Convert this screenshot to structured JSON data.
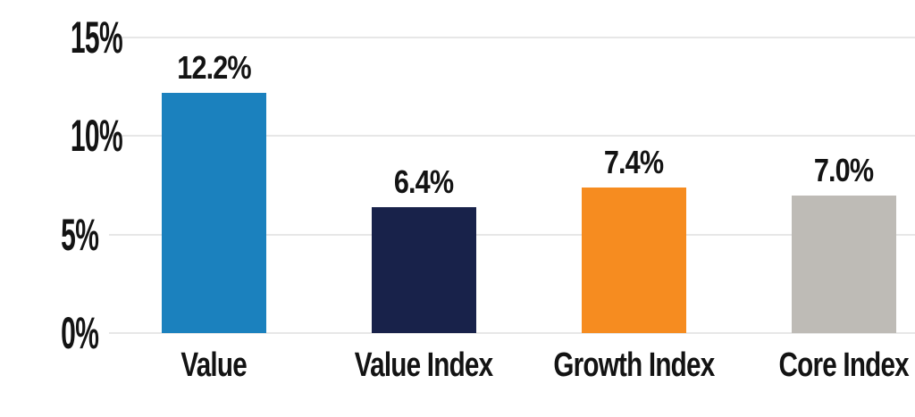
{
  "chart_data": {
    "type": "bar",
    "categories": [
      "Value",
      "Value Index",
      "Growth Index",
      "Core Index"
    ],
    "values": [
      12.2,
      6.4,
      7.4,
      7.0
    ],
    "value_labels": [
      "12.2%",
      "6.4%",
      "7.4%",
      "7.0%"
    ],
    "bar_colors": [
      "#1B81BE",
      "#18224A",
      "#F68C20",
      "#BEBBB6"
    ],
    "ylim": [
      0,
      15
    ],
    "yticks": [
      {
        "value": 15,
        "label": "15%"
      },
      {
        "value": 10,
        "label": "10%"
      },
      {
        "value": 5,
        "label": "5%"
      },
      {
        "value": 0,
        "label": "0%"
      }
    ],
    "grid": "horizontal",
    "legend": "none",
    "colors": {
      "grid_line": "#E7E7E7",
      "text": "#131313",
      "background": "#FFFFFF"
    }
  }
}
